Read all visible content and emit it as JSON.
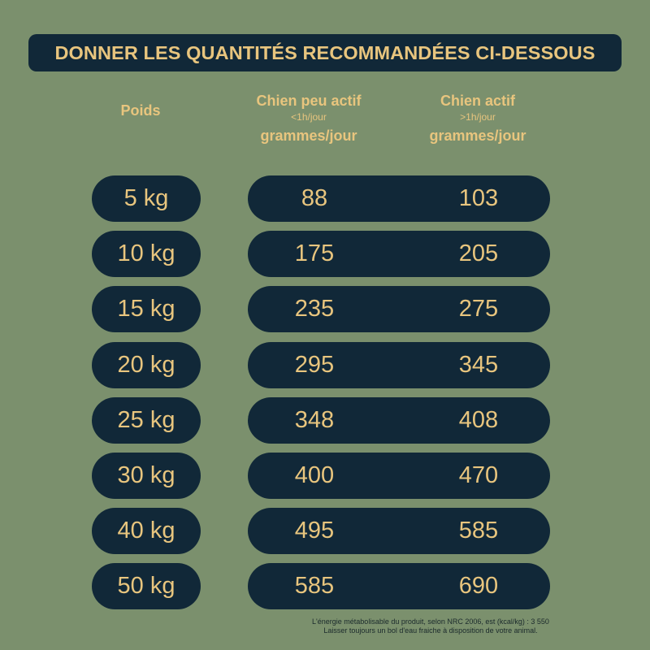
{
  "title": "DONNER LES QUANTITÉS RECOMMANDÉES CI-DESSOUS",
  "headers": {
    "weight": "Poids",
    "low_activity": {
      "label": "Chien peu actif",
      "sub": "<1h/jour",
      "unit": "grammes/jour"
    },
    "active": {
      "label": "Chien actif",
      "sub": ">1h/jour",
      "unit": "grammes/jour"
    }
  },
  "rows": [
    {
      "weight": "5 kg",
      "low": "88",
      "active": "103"
    },
    {
      "weight": "10 kg",
      "low": "175",
      "active": "205"
    },
    {
      "weight": "15 kg",
      "low": "235",
      "active": "275"
    },
    {
      "weight": "20 kg",
      "low": "295",
      "active": "345"
    },
    {
      "weight": "25 kg",
      "low": "348",
      "active": "408"
    },
    {
      "weight": "30 kg",
      "low": "400",
      "active": "470"
    },
    {
      "weight": "40 kg",
      "low": "495",
      "active": "585"
    },
    {
      "weight": "50 kg",
      "low": "585",
      "active": "690"
    }
  ],
  "footnote": {
    "line1": "L'énergie métabolisable du produit, selon NRC 2006, est (kcal/kg) : 3 550",
    "line2": "Laisser toujours un bol d'eau fraiche à disposition de votre animal."
  },
  "colors": {
    "background": "#7b906d",
    "pill": "#112838",
    "text": "#e8c57e"
  }
}
